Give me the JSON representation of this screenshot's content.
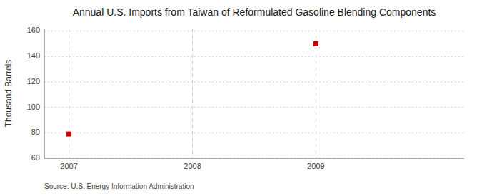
{
  "chart_data": {
    "type": "scatter",
    "title": "Annual U.S. Imports from Taiwan of Reformulated Gasoline Blending Components",
    "ylabel": "Thousand Barrels",
    "annotations": [
      "Source: U.S. Energy Information Administration"
    ],
    "x": [
      2007,
      2009
    ],
    "values": [
      79,
      150
    ],
    "color": "#cc0000",
    "marker": "square",
    "xlim": [
      2006.8,
      2010.2
    ],
    "ylim": [
      60,
      162
    ],
    "xticks": [
      2007,
      2008,
      2009
    ],
    "yticks": [
      60,
      80,
      100,
      120,
      140,
      160
    ],
    "grid": true
  }
}
